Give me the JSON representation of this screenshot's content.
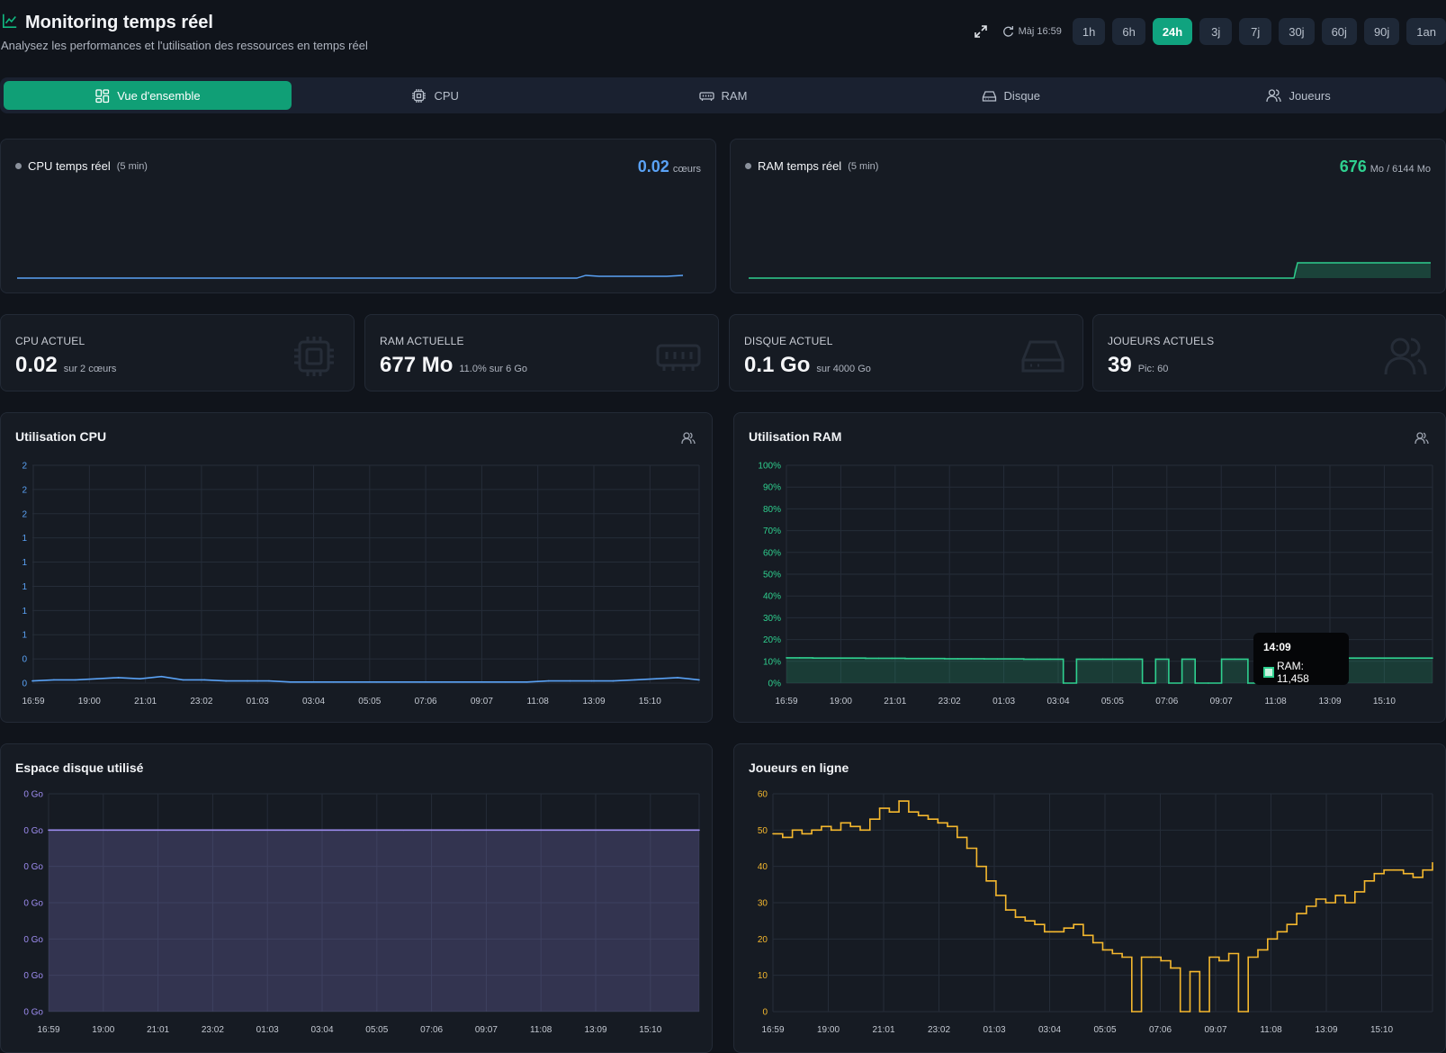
{
  "header": {
    "title": "Monitoring temps réel",
    "subtitle": "Analysez les performances et l'utilisation des ressources en temps réel",
    "updated": "Màj 16:59",
    "ranges": [
      "1h",
      "6h",
      "24h",
      "3j",
      "7j",
      "30j",
      "60j",
      "90j",
      "1an"
    ],
    "active_range": "24h"
  },
  "tabs": [
    {
      "label": "Vue d'ensemble",
      "icon": "dashboard-icon",
      "active": true
    },
    {
      "label": "CPU",
      "icon": "cpu-icon",
      "active": false
    },
    {
      "label": "RAM",
      "icon": "memory-icon",
      "active": false
    },
    {
      "label": "Disque",
      "icon": "disk-icon",
      "active": false
    },
    {
      "label": "Joueurs",
      "icon": "users-icon",
      "active": false
    }
  ],
  "realtime": {
    "cpu": {
      "title": "CPU temps réel",
      "window": "(5 min)",
      "value": "0.02",
      "unit": "cœurs",
      "color": "#5aa2f5"
    },
    "ram": {
      "title": "RAM temps réel",
      "window": "(5 min)",
      "value": "676",
      "unit": "Mo / 6144 Mo",
      "color": "#2fd08f"
    }
  },
  "stats": {
    "cpu": {
      "label": "CPU ACTUEL",
      "value": "0.02",
      "detail": "sur 2 cœurs"
    },
    "ram": {
      "label": "RAM ACTUELLE",
      "value": "677 Mo",
      "detail": "11.0% sur 6 Go"
    },
    "disk": {
      "label": "DISQUE ACTUEL",
      "value": "0.1 Go",
      "detail": "sur 4000 Go"
    },
    "players": {
      "label": "JOUEURS ACTUELS",
      "value": "39",
      "detail": "Pic: 60"
    }
  },
  "tooltip": {
    "time": "14:09",
    "text": "RAM: 11,458"
  },
  "chart_data": [
    {
      "id": "cpu",
      "type": "line",
      "title": "Utilisation CPU",
      "color": "#5aa2f5",
      "x_ticks": [
        "16:59",
        "19:00",
        "21:01",
        "23:02",
        "01:03",
        "03:04",
        "05:05",
        "07:06",
        "09:07",
        "11:08",
        "13:09",
        "15:10"
      ],
      "y_ticks": [
        "2",
        "2",
        "2",
        "1",
        "1",
        "1",
        "1",
        "1",
        "0",
        "0"
      ],
      "ylim": [
        0,
        2
      ],
      "values": [
        0.02,
        0.03,
        0.03,
        0.04,
        0.05,
        0.04,
        0.06,
        0.03,
        0.03,
        0.02,
        0.02,
        0.02,
        0.01,
        0.01,
        0.01,
        0.01,
        0.01,
        0.01,
        0.01,
        0.01,
        0.01,
        0.01,
        0.01,
        0.01,
        0.02,
        0.02,
        0.02,
        0.02,
        0.03,
        0.04,
        0.05,
        0.03
      ]
    },
    {
      "id": "ram",
      "type": "area",
      "title": "Utilisation RAM",
      "color": "#2fd08f",
      "x_ticks": [
        "16:59",
        "19:00",
        "21:01",
        "23:02",
        "01:03",
        "03:04",
        "05:05",
        "07:06",
        "09:07",
        "11:08",
        "13:09",
        "15:10"
      ],
      "y_ticks": [
        "100%",
        "90%",
        "80%",
        "70%",
        "60%",
        "50%",
        "40%",
        "30%",
        "20%",
        "10%",
        "0%"
      ],
      "ylim": [
        0,
        100
      ],
      "values": [
        11.6,
        11.6,
        11.5,
        11.5,
        11.5,
        11.5,
        11.4,
        11.4,
        11.4,
        11.3,
        11.3,
        11.3,
        11.2,
        11.2,
        11.2,
        11.1,
        11.1,
        11.1,
        11.0,
        11.0,
        11.0,
        0,
        11.0,
        11.0,
        11.0,
        11.0,
        11.0,
        0,
        11.0,
        0,
        11.0,
        0,
        0,
        11.0,
        11.0,
        0,
        11.1,
        11.2,
        11.3,
        11.4,
        11.5,
        11.5,
        11.5,
        11.5,
        11.5,
        11.5,
        11.5,
        11.5,
        11.5,
        11.5
      ]
    },
    {
      "id": "disk",
      "type": "area",
      "title": "Espace disque utilisé",
      "color": "#9d8cf0",
      "x_ticks": [
        "16:59",
        "19:00",
        "21:01",
        "23:02",
        "01:03",
        "03:04",
        "05:05",
        "07:06",
        "09:07",
        "11:08",
        "13:09",
        "15:10"
      ],
      "y_ticks": [
        "0 Go",
        "0 Go",
        "0 Go",
        "0 Go",
        "0 Go",
        "0 Go",
        "0 Go"
      ],
      "ylim": [
        0,
        0.12
      ],
      "values": [
        0.1,
        0.1,
        0.1,
        0.1,
        0.1,
        0.1,
        0.1,
        0.1,
        0.1,
        0.1,
        0.1,
        0.1
      ]
    },
    {
      "id": "players",
      "type": "line",
      "title": "Joueurs en ligne",
      "color": "#f5b82e",
      "x_ticks": [
        "16:59",
        "19:00",
        "21:01",
        "23:02",
        "01:03",
        "03:04",
        "05:05",
        "07:06",
        "09:07",
        "11:08",
        "13:09",
        "15:10"
      ],
      "y_ticks": [
        "60",
        "50",
        "40",
        "30",
        "20",
        "10",
        "0"
      ],
      "ylim": [
        0,
        60
      ],
      "values": [
        49,
        48,
        50,
        49,
        50,
        51,
        50,
        52,
        51,
        50,
        53,
        56,
        55,
        58,
        55,
        54,
        53,
        52,
        51,
        48,
        45,
        40,
        36,
        32,
        28,
        26,
        25,
        24,
        22,
        22,
        23,
        24,
        21,
        19,
        17,
        16,
        15,
        0,
        15,
        15,
        14,
        12,
        0,
        11,
        0,
        15,
        14,
        16,
        0,
        15,
        17,
        20,
        22,
        24,
        27,
        29,
        31,
        30,
        32,
        30,
        33,
        36,
        38,
        39,
        39,
        38,
        37,
        39,
        41
      ]
    }
  ]
}
